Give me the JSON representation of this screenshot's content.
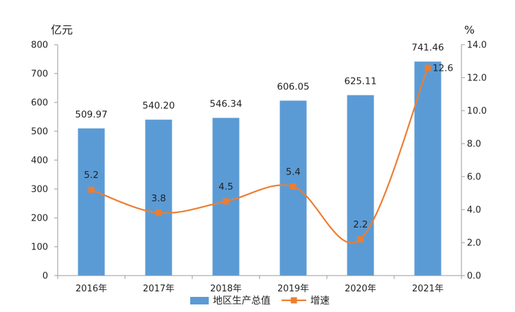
{
  "chart_data": {
    "type": "bar",
    "categories": [
      "2016年",
      "2017年",
      "2018年",
      "2019年",
      "2020年",
      "2021年"
    ],
    "series": [
      {
        "name": "地区生产总值",
        "type": "bar",
        "axis": "left",
        "values": [
          509.97,
          540.2,
          546.34,
          606.05,
          625.11,
          741.46
        ],
        "labels": [
          "509.97",
          "540.20",
          "546.34",
          "606.05",
          "625.11",
          "741.46"
        ]
      },
      {
        "name": "增速",
        "type": "line",
        "axis": "right",
        "values": [
          5.2,
          3.8,
          4.5,
          5.4,
          2.2,
          12.6
        ],
        "labels": [
          "5.2",
          "3.8",
          "4.5",
          "5.4",
          "2.2",
          "12.6"
        ]
      }
    ],
    "y_left": {
      "unit": "亿元",
      "ylim": [
        0,
        800
      ],
      "ticks": [
        "0",
        "100",
        "200",
        "300",
        "400",
        "500",
        "600",
        "700",
        "800"
      ]
    },
    "y_right": {
      "unit": "%",
      "ylim": [
        0,
        14
      ],
      "ticks": [
        "0.0",
        "2.0",
        "4.0",
        "6.0",
        "8.0",
        "10.0",
        "12.0",
        "14.0"
      ]
    },
    "legend": {
      "placement": "bottom"
    },
    "grid": false,
    "colors": {
      "bar": "#5b9bd5",
      "line": "#ed7d31",
      "axis": "#999999"
    }
  }
}
